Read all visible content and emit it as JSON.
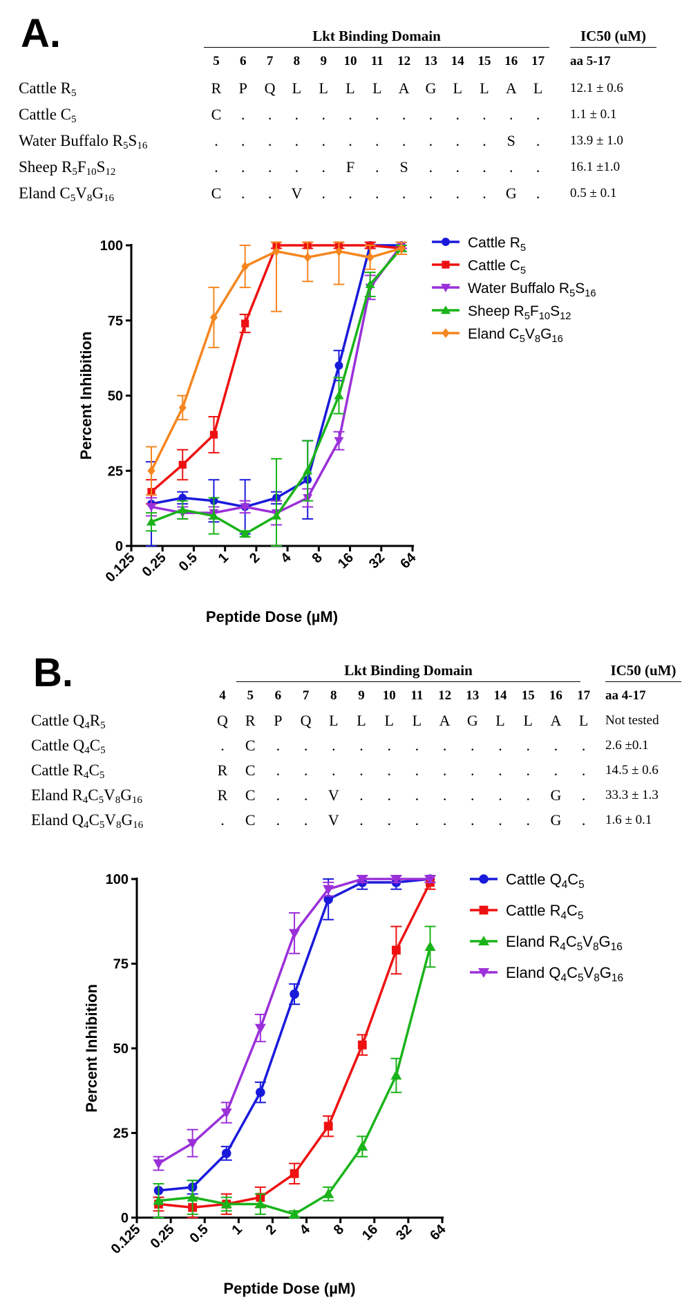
{
  "panels": [
    {
      "label": "A.",
      "table": {
        "domain_title": "Lkt Binding Domain",
        "ic50_title": "IC50 (uM)",
        "ic50_subtitle": "aa 5-17",
        "positions": [
          "5",
          "6",
          "7",
          "8",
          "9",
          "10",
          "11",
          "12",
          "13",
          "14",
          "15",
          "16",
          "17"
        ],
        "rows": [
          {
            "name": [
              [
                "Cattle R",
                ""
              ],
              [
                "5",
                "sub"
              ]
            ],
            "cells": [
              "R",
              "P",
              "Q",
              "L",
              "L",
              "L",
              "L",
              "A",
              "G",
              "L",
              "L",
              "A",
              "L"
            ],
            "ic50": "12.1 ± 0.6"
          },
          {
            "name": [
              [
                "Cattle C",
                ""
              ],
              [
                "5",
                "sub"
              ]
            ],
            "cells": [
              "C",
              ".",
              ".",
              ".",
              ".",
              ".",
              ".",
              ".",
              ".",
              ".",
              ".",
              ".",
              "."
            ],
            "ic50": "1.1 ± 0.1"
          },
          {
            "name": [
              [
                "Water Buffalo R",
                ""
              ],
              [
                "5",
                "sub"
              ],
              [
                "S",
                ""
              ],
              [
                "16",
                "sub"
              ]
            ],
            "cells": [
              ".",
              ".",
              ".",
              ".",
              ".",
              ".",
              ".",
              ".",
              ".",
              ".",
              ".",
              "S",
              "."
            ],
            "ic50": "13.9 ± 1.0"
          },
          {
            "name": [
              [
                "Sheep R",
                ""
              ],
              [
                "5",
                "sub"
              ],
              [
                "F",
                ""
              ],
              [
                "10",
                "sub"
              ],
              [
                "S",
                ""
              ],
              [
                "12",
                "sub"
              ]
            ],
            "cells": [
              ".",
              ".",
              ".",
              ".",
              ".",
              "F",
              ".",
              "S",
              ".",
              ".",
              ".",
              ".",
              "."
            ],
            "ic50": "16.1 ±1.0"
          },
          {
            "name": [
              [
                "Eland C",
                ""
              ],
              [
                "5",
                "sub"
              ],
              [
                "V",
                ""
              ],
              [
                "8",
                "sub"
              ],
              [
                "G",
                ""
              ],
              [
                "16",
                "sub"
              ]
            ],
            "cells": [
              "C",
              ".",
              ".",
              "V",
              ".",
              ".",
              ".",
              ".",
              ".",
              ".",
              ".",
              "G",
              "."
            ],
            "ic50": "0.5 ± 0.1"
          }
        ]
      },
      "chart_data": {
        "type": "line",
        "xlabel": "Peptide Dose (µM)",
        "ylabel": "Percent Inhibition",
        "x_scale": "log2",
        "x_ticks": [
          "0.125",
          "0.25",
          "0.5",
          "1",
          "2",
          "4",
          "8",
          "16",
          "32",
          "64"
        ],
        "y_ticks": [
          "0",
          "25",
          "50",
          "75",
          "100"
        ],
        "xlim": [
          0.125,
          64
        ],
        "ylim": [
          0,
          100
        ],
        "legend_position": "right",
        "series": [
          {
            "name": [
              [
                "Cattle R",
                ""
              ],
              [
                "5",
                "sub"
              ]
            ],
            "color": "#1a1adb",
            "marker": "circle",
            "x": [
              0.195,
              0.39,
              0.78,
              1.56,
              3.125,
              6.25,
              12.5,
              25,
              50
            ],
            "y": [
              14,
              16,
              15,
              13,
              16,
              22,
              60,
              100,
              100
            ],
            "err": [
              14,
              2,
              7,
              9,
              2,
              13,
              5,
              1,
              1
            ]
          },
          {
            "name": [
              [
                "Cattle C",
                ""
              ],
              [
                "5",
                "sub"
              ]
            ],
            "color": "#ee1111",
            "marker": "square",
            "x": [
              0.195,
              0.39,
              0.78,
              1.56,
              3.125,
              6.25,
              12.5,
              25,
              50
            ],
            "y": [
              18,
              27,
              37,
              74,
              100,
              100,
              100,
              100,
              99
            ],
            "err": [
              4,
              5,
              6,
              3,
              1,
              1,
              1,
              1,
              2
            ]
          },
          {
            "name": [
              [
                "Water Buffalo R",
                ""
              ],
              [
                "5",
                "sub"
              ],
              [
                "S",
                ""
              ],
              [
                "16",
                "sub"
              ]
            ],
            "color": "#9b30d9",
            "marker": "triangle-down",
            "x": [
              0.195,
              0.39,
              0.78,
              1.56,
              3.125,
              6.25,
              12.5,
              25,
              50
            ],
            "y": [
              13,
              11,
              11,
              13,
              11,
              16,
              35,
              86,
              100
            ],
            "err": [
              3,
              2,
              2,
              2,
              4,
              3,
              3,
              4,
              1
            ]
          },
          {
            "name": [
              [
                "Sheep R",
                ""
              ],
              [
                "5",
                "sub"
              ],
              [
                "F",
                ""
              ],
              [
                "10",
                "sub"
              ],
              [
                "S",
                ""
              ],
              [
                "12",
                "sub"
              ]
            ],
            "color": "#1ab31a",
            "marker": "triangle-up",
            "x": [
              0.195,
              0.39,
              0.78,
              1.56,
              3.125,
              6.25,
              12.5,
              25,
              50
            ],
            "y": [
              8,
              12,
              10,
              4,
              10,
              25,
              50,
              87,
              99
            ],
            "err": [
              3,
              3,
              6,
              1,
              19,
              10,
              6,
              4,
              1
            ]
          },
          {
            "name": [
              [
                "Eland C",
                ""
              ],
              [
                "5",
                "sub"
              ],
              [
                "V",
                ""
              ],
              [
                "8",
                "sub"
              ],
              [
                "G",
                ""
              ],
              [
                "16",
                "sub"
              ]
            ],
            "color": "#f5861f",
            "marker": "diamond",
            "x": [
              0.195,
              0.39,
              0.78,
              1.56,
              3.125,
              6.25,
              12.5,
              25,
              50
            ],
            "y": [
              25,
              46,
              76,
              93,
              98,
              96,
              98,
              96,
              99
            ],
            "err": [
              8,
              4,
              10,
              7,
              20,
              8,
              11,
              4,
              2
            ]
          }
        ]
      }
    },
    {
      "label": "B.",
      "table": {
        "domain_title": "Lkt Binding Domain",
        "ic50_title": "IC50 (uM)",
        "ic50_subtitle": "aa 4-17",
        "positions": [
          "4",
          "5",
          "6",
          "7",
          "8",
          "9",
          "10",
          "11",
          "12",
          "13",
          "14",
          "15",
          "16",
          "17"
        ],
        "rows": [
          {
            "name": [
              [
                "Cattle Q",
                ""
              ],
              [
                "4",
                "sub"
              ],
              [
                "R",
                ""
              ],
              [
                "5",
                "sub"
              ]
            ],
            "cells": [
              "Q",
              "R",
              "P",
              "Q",
              "L",
              "L",
              "L",
              "L",
              "A",
              "G",
              "L",
              "L",
              "A",
              "L"
            ],
            "ic50": "Not tested"
          },
          {
            "name": [
              [
                "Cattle Q",
                ""
              ],
              [
                "4",
                "sub"
              ],
              [
                "C",
                ""
              ],
              [
                "5",
                "sub"
              ]
            ],
            "cells": [
              ".",
              "C",
              ".",
              ".",
              ".",
              ".",
              ".",
              ".",
              ".",
              ".",
              ".",
              ".",
              ".",
              "."
            ],
            "ic50": "2.6 ±0.1"
          },
          {
            "name": [
              [
                "Cattle R",
                ""
              ],
              [
                "4",
                "sub"
              ],
              [
                "C",
                ""
              ],
              [
                "5",
                "sub"
              ]
            ],
            "cells": [
              "R",
              "C",
              ".",
              ".",
              ".",
              ".",
              ".",
              ".",
              ".",
              ".",
              ".",
              ".",
              ".",
              "."
            ],
            "ic50": "14.5 ± 0.6"
          },
          {
            "name": [
              [
                "Eland R",
                ""
              ],
              [
                "4",
                "sub"
              ],
              [
                "C",
                ""
              ],
              [
                "5",
                "sub"
              ],
              [
                "V",
                ""
              ],
              [
                "8",
                "sub"
              ],
              [
                "G",
                ""
              ],
              [
                "16",
                "sub"
              ]
            ],
            "cells": [
              "R",
              "C",
              ".",
              ".",
              "V",
              ".",
              ".",
              ".",
              ".",
              ".",
              ".",
              ".",
              "G",
              "."
            ],
            "ic50": "33.3 ± 1.3"
          },
          {
            "name": [
              [
                "Eland Q",
                ""
              ],
              [
                "4",
                "sub"
              ],
              [
                "C",
                ""
              ],
              [
                "5",
                "sub"
              ],
              [
                "V",
                ""
              ],
              [
                "8",
                "sub"
              ],
              [
                "G",
                ""
              ],
              [
                "16",
                "sub"
              ]
            ],
            "cells": [
              ".",
              "C",
              ".",
              ".",
              "V",
              ".",
              ".",
              ".",
              ".",
              ".",
              ".",
              ".",
              "G",
              "."
            ],
            "ic50": "1.6 ± 0.1"
          }
        ]
      },
      "chart_data": {
        "type": "line",
        "xlabel": "Peptide Dose (µM)",
        "ylabel": "Percent Inhibition",
        "x_scale": "log2",
        "x_ticks": [
          "0.125",
          "0.25",
          "0.5",
          "1",
          "2",
          "4",
          "8",
          "16",
          "32",
          "64"
        ],
        "y_ticks": [
          "0",
          "25",
          "50",
          "75",
          "100"
        ],
        "xlim": [
          0.125,
          64
        ],
        "ylim": [
          0,
          100
        ],
        "legend_position": "right",
        "series": [
          {
            "name": [
              [
                "Cattle Q",
                ""
              ],
              [
                "4",
                "sub"
              ],
              [
                "C",
                ""
              ],
              [
                "5",
                "sub"
              ]
            ],
            "color": "#1a1adb",
            "marker": "circle",
            "x": [
              0.195,
              0.39,
              0.78,
              1.56,
              3.125,
              6.25,
              12.5,
              25,
              50
            ],
            "y": [
              8,
              9,
              19,
              37,
              66,
              94,
              99,
              99,
              100
            ],
            "err": [
              2,
              2,
              2,
              3,
              3,
              6,
              2,
              2,
              1
            ]
          },
          {
            "name": [
              [
                "Cattle R",
                ""
              ],
              [
                "4",
                "sub"
              ],
              [
                "C",
                ""
              ],
              [
                "5",
                "sub"
              ]
            ],
            "color": "#ee1111",
            "marker": "square",
            "x": [
              0.195,
              0.39,
              0.78,
              1.56,
              3.125,
              6.25,
              12.5,
              25,
              50
            ],
            "y": [
              4,
              3,
              4,
              6,
              13,
              27,
              51,
              79,
              99
            ],
            "err": [
              2,
              3,
              3,
              3,
              3,
              3,
              3,
              7,
              2
            ]
          },
          {
            "name": [
              [
                "Eland R",
                ""
              ],
              [
                "4",
                "sub"
              ],
              [
                "C",
                ""
              ],
              [
                "5",
                "sub"
              ],
              [
                "V",
                ""
              ],
              [
                "8",
                "sub"
              ],
              [
                "G",
                ""
              ],
              [
                "16",
                "sub"
              ]
            ],
            "color": "#1ab31a",
            "marker": "triangle-up",
            "x": [
              0.195,
              0.39,
              0.78,
              1.56,
              3.125,
              6.25,
              12.5,
              25,
              50
            ],
            "y": [
              5,
              6,
              4,
              4,
              1,
              7,
              21,
              42,
              80
            ],
            "err": [
              5,
              5,
              2,
              3,
              1,
              2,
              3,
              5,
              6
            ]
          },
          {
            "name": [
              [
                "Eland Q",
                ""
              ],
              [
                "4",
                "sub"
              ],
              [
                "C",
                ""
              ],
              [
                "5",
                "sub"
              ],
              [
                "V",
                ""
              ],
              [
                "8",
                "sub"
              ],
              [
                "G",
                ""
              ],
              [
                "16",
                "sub"
              ]
            ],
            "color": "#9b30d9",
            "marker": "triangle-down",
            "x": [
              0.195,
              0.39,
              0.78,
              1.56,
              3.125,
              6.25,
              12.5,
              25,
              50
            ],
            "y": [
              16,
              22,
              31,
              56,
              84,
              97,
              100,
              100,
              100
            ],
            "err": [
              2,
              4,
              3,
              4,
              6,
              2,
              1,
              1,
              1
            ]
          }
        ]
      }
    }
  ]
}
